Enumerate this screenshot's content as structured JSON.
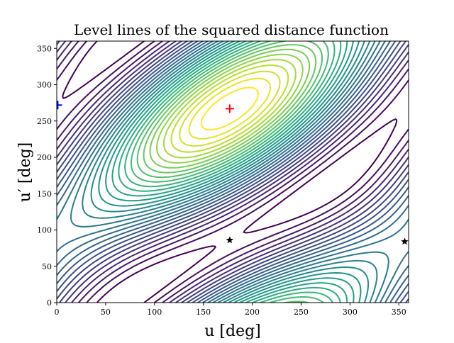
{
  "chart_data": {
    "type": "contour",
    "title": "Level lines of the squared distance function",
    "xlabel": "u [deg]",
    "ylabel": "u′ [deg]",
    "xlim": [
      0,
      360
    ],
    "ylim": [
      0,
      360
    ],
    "xticks": [
      "0",
      "50",
      "100",
      "150",
      "200",
      "250",
      "300",
      "350"
    ],
    "yticks": [
      "0",
      "50",
      "100",
      "150",
      "200",
      "250",
      "300",
      "350"
    ],
    "colormap": "viridis",
    "levels": 30,
    "grid": false,
    "markers": [
      {
        "kind": "plus",
        "color": "#ff0000",
        "u": 177,
        "u_prime": 267
      },
      {
        "kind": "plus",
        "color": "#0000ff",
        "u": 1,
        "u_prime": 272
      },
      {
        "kind": "star",
        "color": "#000000",
        "u": 177,
        "u_prime": 86
      },
      {
        "kind": "star",
        "color": "#000000",
        "u": 356,
        "u_prime": 84
      }
    ]
  }
}
